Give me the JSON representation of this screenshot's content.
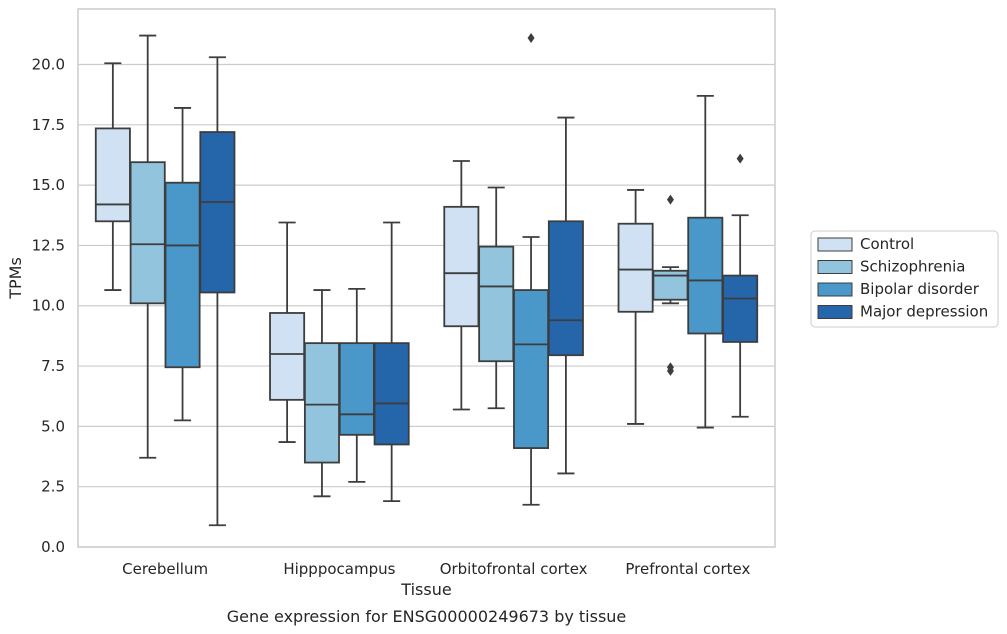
{
  "chart_data": {
    "type": "box",
    "xlabel": "Tissue",
    "ylabel": "TPMs",
    "caption": "Gene expression for ENSG00000249673 by tissue",
    "ylim": [
      0,
      22.3
    ],
    "yticks": [
      "0.0",
      "2.5",
      "5.0",
      "7.5",
      "10.0",
      "12.5",
      "15.0",
      "17.5",
      "20.0"
    ],
    "grid": "horizontal",
    "legend_position": "right",
    "categories": [
      "Cerebellum",
      "Hipppocampus",
      "Orbitofrontal cortex",
      "Prefrontal cortex"
    ],
    "series": [
      {
        "name": "Control",
        "color": "#cfe1f2",
        "boxes": [
          {
            "whislo": 10.65,
            "q1": 13.5,
            "med": 14.2,
            "q3": 17.35,
            "whishi": 20.05,
            "fliers": []
          },
          {
            "whislo": 4.35,
            "q1": 6.1,
            "med": 8.0,
            "q3": 9.7,
            "whishi": 13.45,
            "fliers": []
          },
          {
            "whislo": 5.7,
            "q1": 9.15,
            "med": 11.35,
            "q3": 14.1,
            "whishi": 16.0,
            "fliers": []
          },
          {
            "whislo": 5.1,
            "q1": 9.75,
            "med": 11.5,
            "q3": 13.4,
            "whishi": 14.8,
            "fliers": []
          }
        ]
      },
      {
        "name": "Schizophrenia",
        "color": "#93c4de",
        "boxes": [
          {
            "whislo": 3.7,
            "q1": 10.1,
            "med": 12.55,
            "q3": 15.95,
            "whishi": 21.2,
            "fliers": []
          },
          {
            "whislo": 2.1,
            "q1": 3.5,
            "med": 5.9,
            "q3": 8.45,
            "whishi": 10.65,
            "fliers": []
          },
          {
            "whislo": 5.75,
            "q1": 7.7,
            "med": 10.8,
            "q3": 12.45,
            "whishi": 14.9,
            "fliers": []
          },
          {
            "whislo": 10.1,
            "q1": 10.25,
            "med": 11.25,
            "q3": 11.45,
            "whishi": 11.6,
            "fliers": [
              14.4,
              7.45,
              7.3
            ]
          }
        ]
      },
      {
        "name": "Bipolar disorder",
        "color": "#4a98c9",
        "boxes": [
          {
            "whislo": 5.25,
            "q1": 7.45,
            "med": 12.5,
            "q3": 15.1,
            "whishi": 18.2,
            "fliers": []
          },
          {
            "whislo": 2.7,
            "q1": 4.65,
            "med": 5.5,
            "q3": 8.45,
            "whishi": 10.7,
            "fliers": []
          },
          {
            "whislo": 1.75,
            "q1": 4.1,
            "med": 8.4,
            "q3": 10.65,
            "whishi": 12.85,
            "fliers": [
              21.1
            ]
          },
          {
            "whislo": 4.95,
            "q1": 8.85,
            "med": 11.05,
            "q3": 13.65,
            "whishi": 18.7,
            "fliers": []
          }
        ]
      },
      {
        "name": "Major depression",
        "color": "#2566ab",
        "boxes": [
          {
            "whislo": 0.9,
            "q1": 10.55,
            "med": 14.3,
            "q3": 17.2,
            "whishi": 20.3,
            "fliers": []
          },
          {
            "whislo": 1.9,
            "q1": 4.25,
            "med": 5.95,
            "q3": 8.45,
            "whishi": 13.45,
            "fliers": []
          },
          {
            "whislo": 3.05,
            "q1": 7.95,
            "med": 9.4,
            "q3": 13.5,
            "whishi": 17.8,
            "fliers": []
          },
          {
            "whislo": 5.4,
            "q1": 8.5,
            "med": 10.3,
            "q3": 11.25,
            "whishi": 13.75,
            "fliers": [
              16.1
            ]
          }
        ]
      }
    ]
  }
}
